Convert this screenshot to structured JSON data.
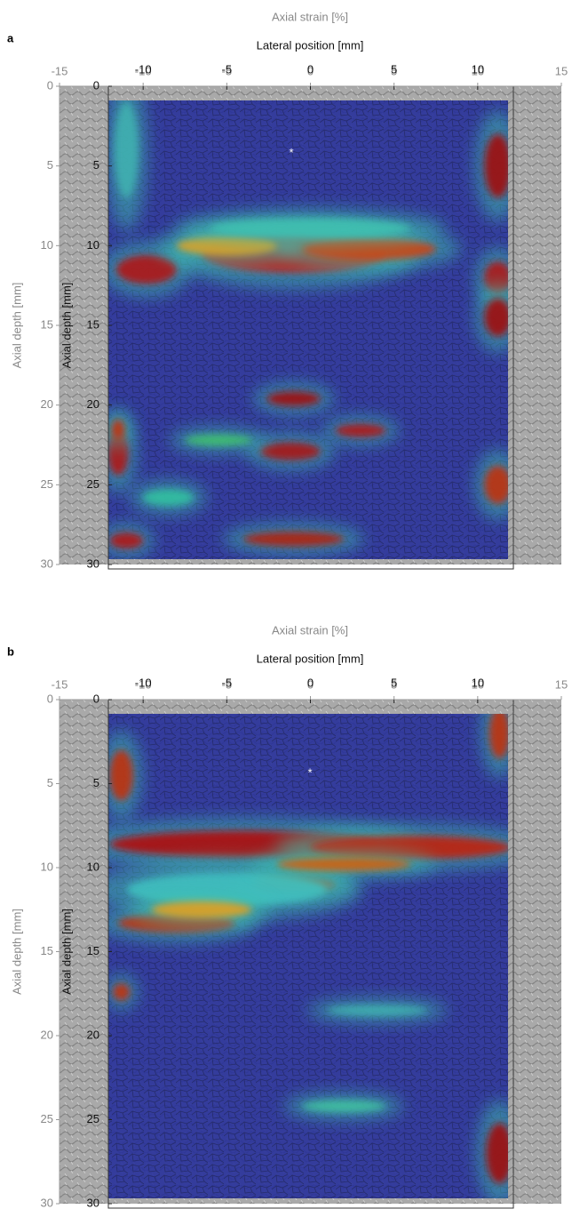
{
  "chart_data": [
    {
      "type": "image",
      "panel": "a",
      "title": "Axial strain [%]",
      "xlabel": "Lateral position [mm]",
      "ylabel": "Axial depth [mm]",
      "ylabel_inner": "Axial depth [mm]",
      "annotation": "*",
      "xlim": [
        -15,
        15
      ],
      "xticks": [
        -15,
        -10,
        -5,
        0,
        5,
        10,
        15
      ],
      "ylim": [
        0,
        30
      ],
      "yticks": [
        0,
        5,
        10,
        15,
        20,
        25,
        30
      ],
      "inner_xticks": [
        -10,
        -5,
        0,
        5,
        10
      ],
      "inner_yticks": [
        0,
        5,
        10,
        15,
        20,
        25,
        30
      ]
    },
    {
      "type": "image",
      "panel": "b",
      "title": "Axial strain [%]",
      "xlabel": "Lateral position [mm]",
      "ylabel": "Axial depth [mm]",
      "ylabel_inner": "Axial depth [mm]",
      "annotation": "*",
      "xlim": [
        -15,
        15
      ],
      "xticks": [
        -15,
        -10,
        -5,
        0,
        5,
        10,
        15
      ],
      "ylim": [
        0,
        30
      ],
      "yticks": [
        0,
        5,
        10,
        15,
        20,
        25,
        30
      ],
      "inner_xticks": [
        -10,
        -5,
        0,
        5,
        10
      ],
      "inner_yticks": [
        0,
        5,
        10,
        15,
        20,
        25,
        30
      ]
    }
  ]
}
